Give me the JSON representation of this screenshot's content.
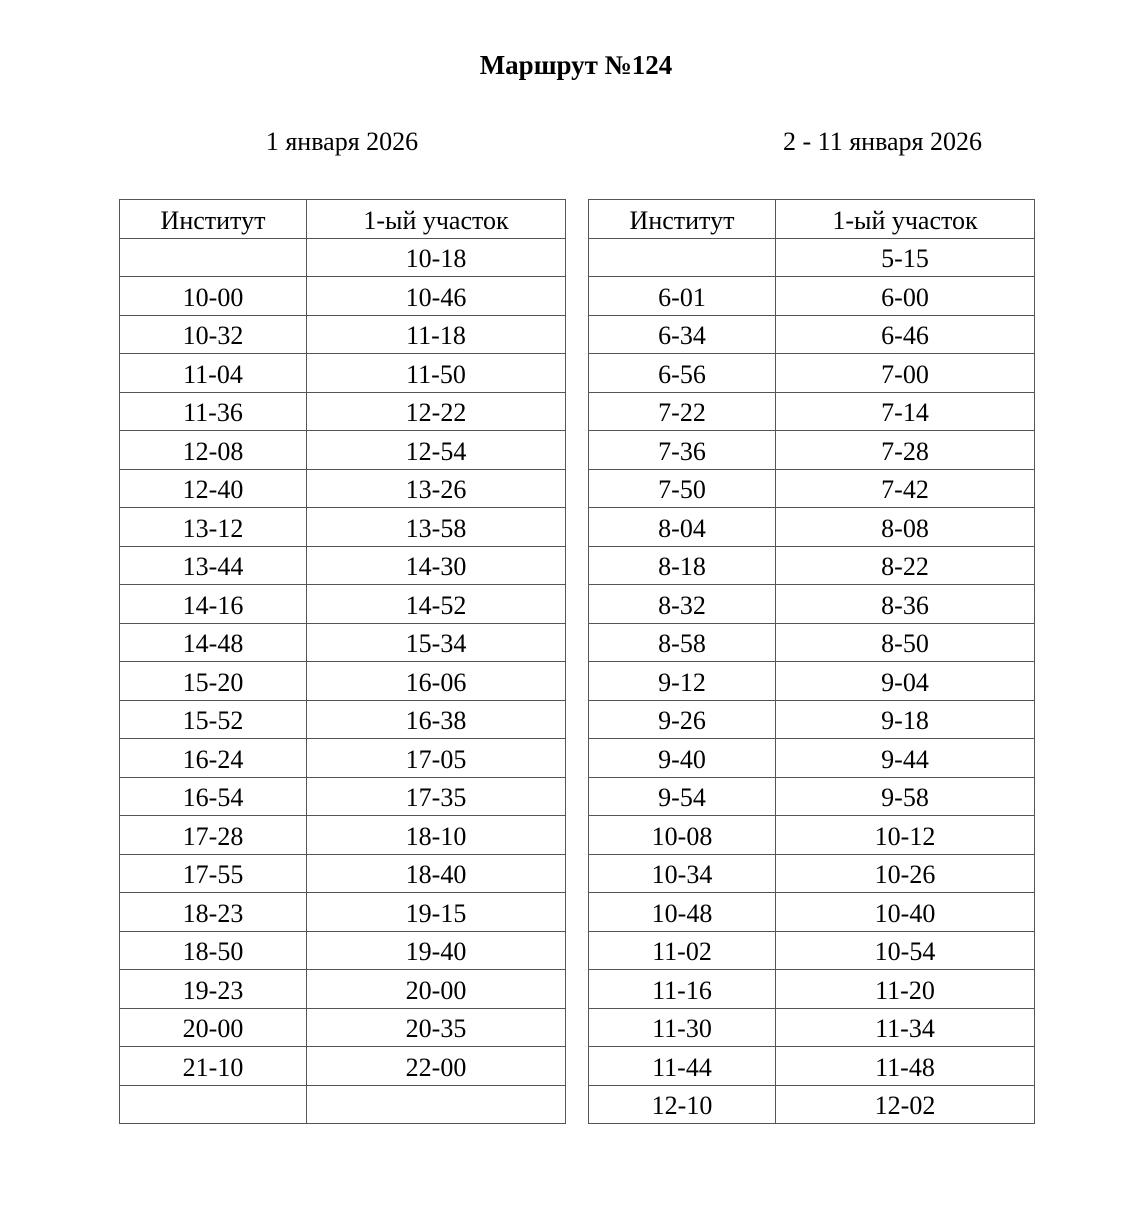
{
  "title": "Маршрут №124",
  "tables": [
    {
      "date": "1 января 2026",
      "headers": [
        "Институт",
        "1-ый участок"
      ],
      "rows": [
        [
          "",
          "10-18"
        ],
        [
          "10-00",
          "10-46"
        ],
        [
          "10-32",
          "11-18"
        ],
        [
          "11-04",
          "11-50"
        ],
        [
          "11-36",
          "12-22"
        ],
        [
          "12-08",
          "12-54"
        ],
        [
          "12-40",
          "13-26"
        ],
        [
          "13-12",
          "13-58"
        ],
        [
          "13-44",
          "14-30"
        ],
        [
          "14-16",
          "14-52"
        ],
        [
          "14-48",
          "15-34"
        ],
        [
          "15-20",
          "16-06"
        ],
        [
          "15-52",
          "16-38"
        ],
        [
          "16-24",
          "17-05"
        ],
        [
          "16-54",
          "17-35"
        ],
        [
          "17-28",
          "18-10"
        ],
        [
          "17-55",
          "18-40"
        ],
        [
          "18-23",
          "19-15"
        ],
        [
          "18-50",
          "19-40"
        ],
        [
          "19-23",
          "20-00"
        ],
        [
          "20-00",
          "20-35"
        ],
        [
          "21-10",
          "22-00"
        ],
        [
          "",
          ""
        ]
      ]
    },
    {
      "date": "2 - 11 января 2026",
      "headers": [
        "Институт",
        "1-ый участок"
      ],
      "rows": [
        [
          "",
          "5-15"
        ],
        [
          "6-01",
          "6-00"
        ],
        [
          "6-34",
          "6-46"
        ],
        [
          "6-56",
          "7-00"
        ],
        [
          "7-22",
          "7-14"
        ],
        [
          "7-36",
          "7-28"
        ],
        [
          "7-50",
          "7-42"
        ],
        [
          "8-04",
          "8-08"
        ],
        [
          "8-18",
          "8-22"
        ],
        [
          "8-32",
          "8-36"
        ],
        [
          "8-58",
          "8-50"
        ],
        [
          "9-12",
          "9-04"
        ],
        [
          "9-26",
          "9-18"
        ],
        [
          "9-40",
          "9-44"
        ],
        [
          "9-54",
          "9-58"
        ],
        [
          "10-08",
          "10-12"
        ],
        [
          "10-34",
          "10-26"
        ],
        [
          "10-48",
          "10-40"
        ],
        [
          "11-02",
          "10-54"
        ],
        [
          "11-16",
          "11-20"
        ],
        [
          "11-30",
          "11-34"
        ],
        [
          "11-44",
          "11-48"
        ],
        [
          "12-10",
          "12-02"
        ]
      ]
    }
  ]
}
